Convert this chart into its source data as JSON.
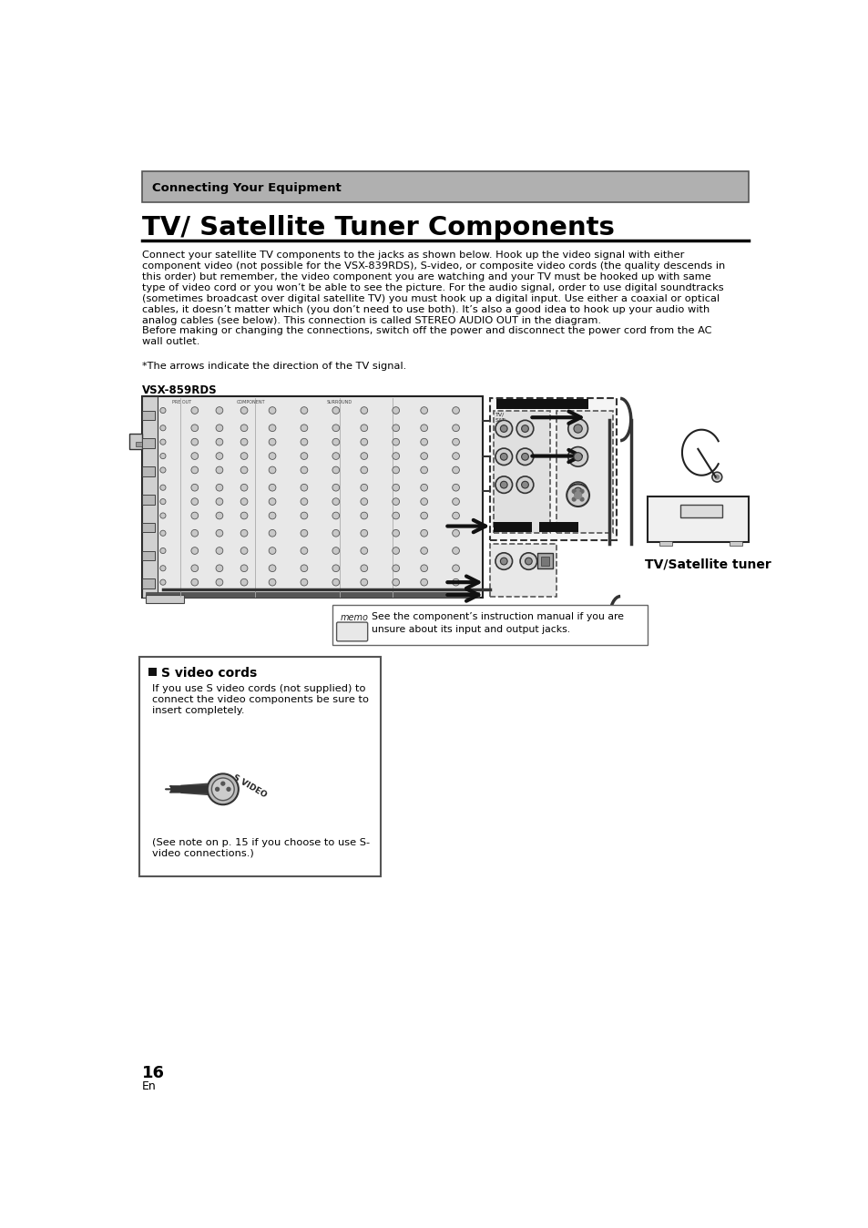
{
  "page_bg": "#ffffff",
  "header_bg": "#b0b0b0",
  "header_text": "Connecting Your Equipment",
  "title": "TV/ Satellite Tuner Components",
  "body_paragraph1_lines": [
    "Connect your satellite TV components to the jacks as shown below. Hook up the video signal with either",
    "component video (not possible for the VSX-839RDS), S-video, or composite video cords (the quality descends in",
    "this order) but remember, the video component you are watching and your TV must be hooked up with same",
    "type of video cord or you won’t be able to see the picture. For the audio signal, order to use digital soundtracks",
    "(sometimes broadcast over digital satellite TV) you must hook up a digital input. Use either a coaxial or optical",
    "cables, it doesn’t matter which (you don’t need to use both). It’s also a good idea to hook up your audio with",
    "analog cables (see below). This connection is called STEREO AUDIO OUT in the diagram.",
    "Before making or changing the connections, switch off the power and disconnect the power cord from the AC",
    "wall outlet."
  ],
  "arrows_note": "*The arrows indicate the direction of the TV signal.",
  "vsx_label": "VSX-859RDS",
  "tv_sat_label": "TV/Satellite tuner",
  "memo_text": "See the component’s instruction manual if you are\nunsure about its input and output jacks.",
  "svideo_title": "S video cords",
  "svideo_body_lines": [
    "If you use S video cords (not supplied) to",
    "connect the video components be sure to",
    "insert completely."
  ],
  "svideo_note_lines": [
    "(See note on p. 15 if you choose to use S-",
    "video connections.)"
  ],
  "page_number": "16",
  "page_lang": "En"
}
